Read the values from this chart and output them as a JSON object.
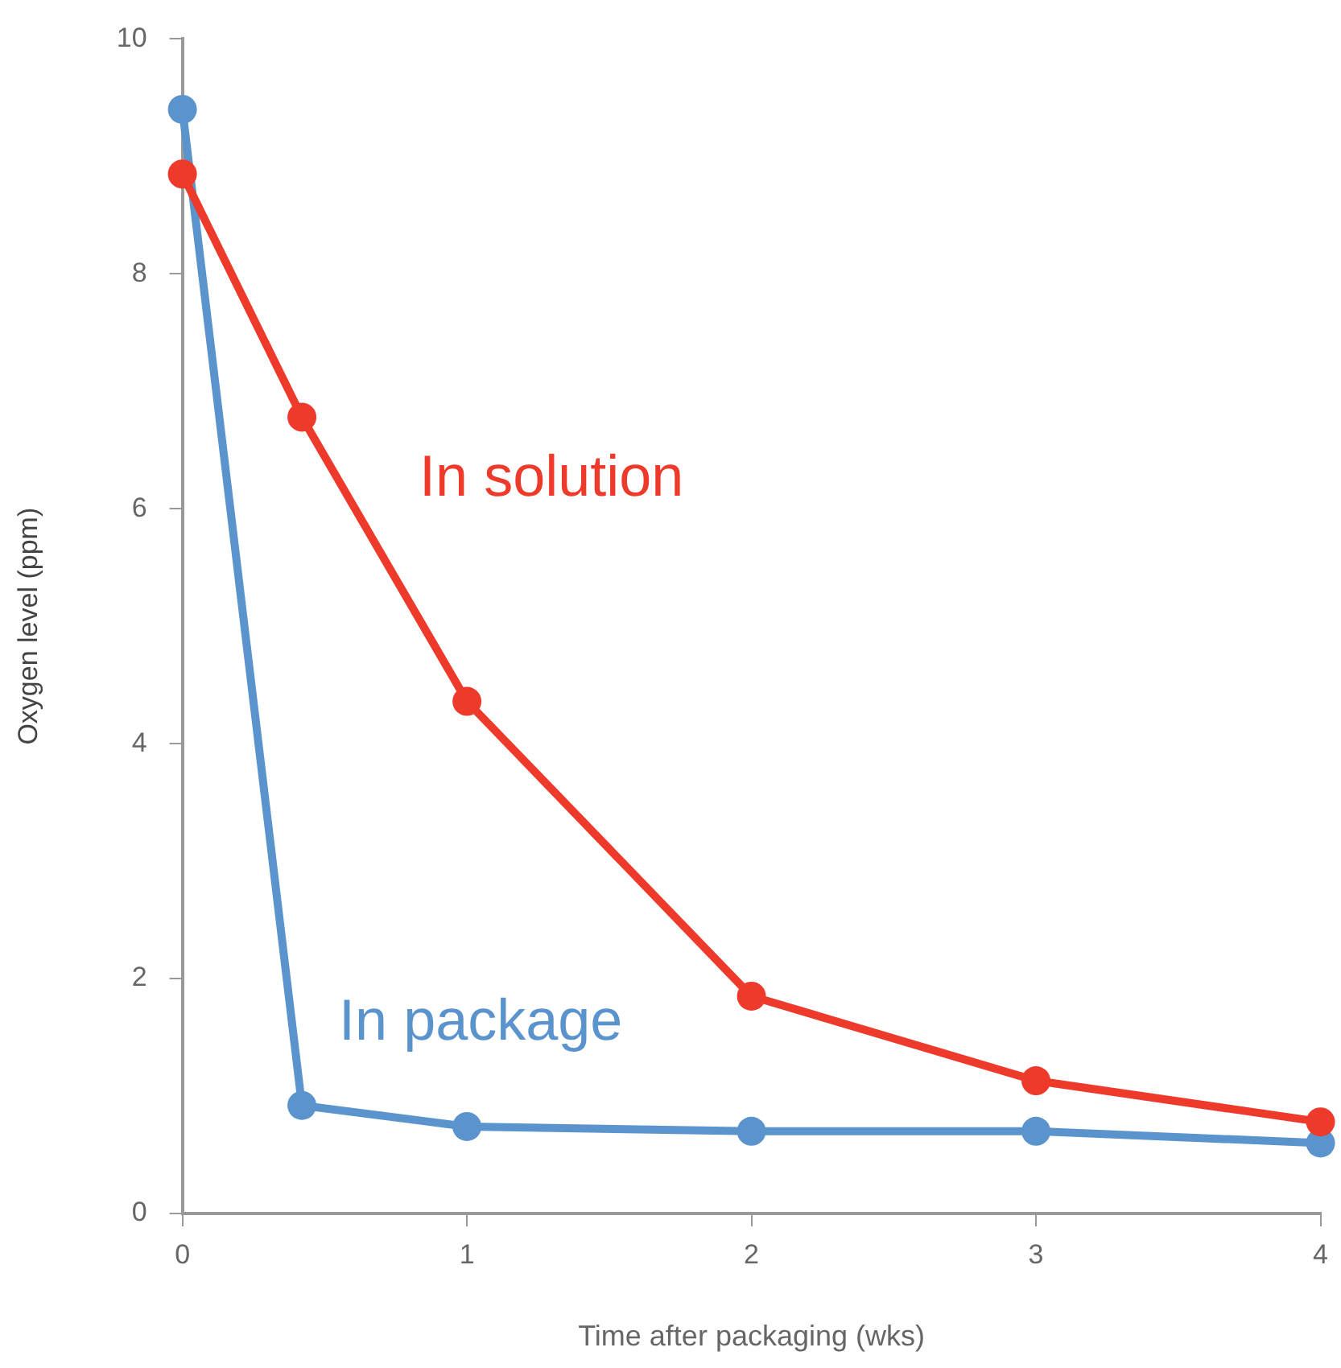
{
  "chart_data": {
    "type": "line",
    "xlabel": "Time after packaging (wks)",
    "ylabel": "Oxygen level (ppm)",
    "xlim": [
      0,
      4
    ],
    "xticks": [
      0,
      1,
      2,
      3,
      4
    ],
    "ylim": [
      0,
      10
    ],
    "yticks": [
      0,
      2,
      4,
      6,
      8,
      10
    ],
    "grid": false,
    "legend": false,
    "marker": "circle",
    "line_style": "solid",
    "series": [
      {
        "name": "In package",
        "color": "#5b94cc",
        "x": [
          0,
          0.42,
          1,
          2,
          3,
          4
        ],
        "values": [
          9.4,
          0.92,
          0.74,
          0.7,
          0.7,
          0.6
        ]
      },
      {
        "name": "In solution",
        "color": "#ee3a2b",
        "x": [
          0,
          0.42,
          1,
          2,
          3,
          4
        ],
        "values": [
          8.85,
          6.78,
          4.36,
          1.85,
          1.13,
          0.78
        ]
      }
    ]
  }
}
